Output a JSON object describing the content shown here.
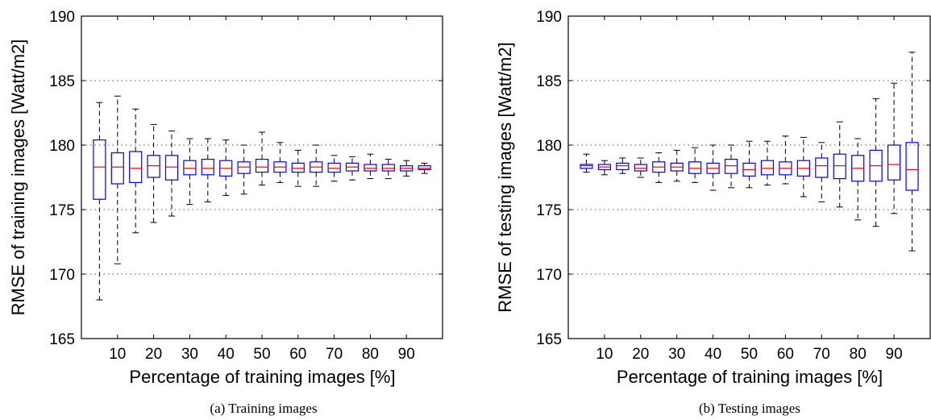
{
  "chart_data": [
    {
      "type": "box",
      "caption": "(a) Training images",
      "xlabel": "Percentage of training images [%]",
      "ylabel": "RMSE of training images [Watt/m2]",
      "ylim": [
        165,
        190
      ],
      "yticks": [
        165,
        170,
        175,
        180,
        185,
        190
      ],
      "xticks": [
        10,
        20,
        30,
        40,
        50,
        60,
        70,
        80,
        90
      ],
      "grid": "horizontal dotted",
      "colors": {
        "box": "#0000ff",
        "median": "#ff0000",
        "whisker": "#000000"
      },
      "boxes": [
        {
          "x": 5,
          "whislo": 168.0,
          "q1": 175.8,
          "med": 178.3,
          "q3": 180.4,
          "whishi": 183.3
        },
        {
          "x": 10,
          "whislo": 170.8,
          "q1": 177.0,
          "med": 178.3,
          "q3": 179.4,
          "whishi": 183.8
        },
        {
          "x": 15,
          "whislo": 173.2,
          "q1": 177.1,
          "med": 178.2,
          "q3": 179.5,
          "whishi": 182.8
        },
        {
          "x": 20,
          "whislo": 174.0,
          "q1": 177.5,
          "med": 178.4,
          "q3": 179.2,
          "whishi": 181.6
        },
        {
          "x": 25,
          "whislo": 174.5,
          "q1": 177.3,
          "med": 178.3,
          "q3": 179.2,
          "whishi": 181.1
        },
        {
          "x": 30,
          "whislo": 175.4,
          "q1": 177.7,
          "med": 178.2,
          "q3": 178.8,
          "whishi": 180.5
        },
        {
          "x": 35,
          "whislo": 175.6,
          "q1": 177.7,
          "med": 178.2,
          "q3": 178.9,
          "whishi": 180.5
        },
        {
          "x": 40,
          "whislo": 176.1,
          "q1": 177.6,
          "med": 178.2,
          "q3": 178.8,
          "whishi": 180.4
        },
        {
          "x": 45,
          "whislo": 176.2,
          "q1": 177.8,
          "med": 178.3,
          "q3": 178.7,
          "whishi": 180.0
        },
        {
          "x": 50,
          "whislo": 176.9,
          "q1": 177.9,
          "med": 178.3,
          "q3": 178.9,
          "whishi": 181.0
        },
        {
          "x": 55,
          "whislo": 177.1,
          "q1": 177.9,
          "med": 178.3,
          "q3": 178.7,
          "whishi": 180.2
        },
        {
          "x": 60,
          "whislo": 176.8,
          "q1": 177.9,
          "med": 178.2,
          "q3": 178.6,
          "whishi": 179.6
        },
        {
          "x": 65,
          "whislo": 176.8,
          "q1": 177.9,
          "med": 178.3,
          "q3": 178.7,
          "whishi": 180.0
        },
        {
          "x": 70,
          "whislo": 177.2,
          "q1": 177.9,
          "med": 178.2,
          "q3": 178.6,
          "whishi": 179.2
        },
        {
          "x": 75,
          "whislo": 177.3,
          "q1": 178.0,
          "med": 178.3,
          "q3": 178.6,
          "whishi": 179.1
        },
        {
          "x": 80,
          "whislo": 177.4,
          "q1": 178.0,
          "med": 178.2,
          "q3": 178.5,
          "whishi": 179.3
        },
        {
          "x": 85,
          "whislo": 177.4,
          "q1": 178.0,
          "med": 178.2,
          "q3": 178.5,
          "whishi": 178.9
        },
        {
          "x": 90,
          "whislo": 177.6,
          "q1": 178.0,
          "med": 178.2,
          "q3": 178.4,
          "whishi": 178.8
        },
        {
          "x": 95,
          "whislo": 177.8,
          "q1": 178.1,
          "med": 178.2,
          "q3": 178.4,
          "whishi": 178.6
        }
      ]
    },
    {
      "type": "box",
      "caption": "(b) Testing images",
      "xlabel": "Percentage of training images [%]",
      "ylabel": "RMSE of testing images [Watt/m2]",
      "ylim": [
        165,
        190
      ],
      "yticks": [
        165,
        170,
        175,
        180,
        185,
        190
      ],
      "xticks": [
        10,
        20,
        30,
        40,
        50,
        60,
        70,
        80,
        90
      ],
      "grid": "horizontal dotted",
      "colors": {
        "box": "#0000ff",
        "median": "#ff0000",
        "whisker": "#000000"
      },
      "boxes": [
        {
          "x": 5,
          "whislo": 177.9,
          "q1": 178.2,
          "med": 178.4,
          "q3": 178.5,
          "whishi": 179.3
        },
        {
          "x": 10,
          "whislo": 177.7,
          "q1": 178.1,
          "med": 178.3,
          "q3": 178.5,
          "whishi": 178.8
        },
        {
          "x": 15,
          "whislo": 177.8,
          "q1": 178.1,
          "med": 178.4,
          "q3": 178.6,
          "whishi": 179.0
        },
        {
          "x": 20,
          "whislo": 177.5,
          "q1": 178.0,
          "med": 178.2,
          "q3": 178.5,
          "whishi": 179.0
        },
        {
          "x": 25,
          "whislo": 177.1,
          "q1": 177.9,
          "med": 178.3,
          "q3": 178.7,
          "whishi": 179.4
        },
        {
          "x": 30,
          "whislo": 177.2,
          "q1": 178.0,
          "med": 178.3,
          "q3": 178.6,
          "whishi": 179.6
        },
        {
          "x": 35,
          "whislo": 177.1,
          "q1": 177.8,
          "med": 178.2,
          "q3": 178.7,
          "whishi": 179.8
        },
        {
          "x": 40,
          "whislo": 176.5,
          "q1": 177.8,
          "med": 178.2,
          "q3": 178.6,
          "whishi": 180.0
        },
        {
          "x": 45,
          "whislo": 176.7,
          "q1": 177.8,
          "med": 178.4,
          "q3": 178.9,
          "whishi": 180.0
        },
        {
          "x": 50,
          "whislo": 176.7,
          "q1": 177.6,
          "med": 178.1,
          "q3": 178.6,
          "whishi": 180.3
        },
        {
          "x": 55,
          "whislo": 176.9,
          "q1": 177.7,
          "med": 178.2,
          "q3": 178.8,
          "whishi": 180.3
        },
        {
          "x": 60,
          "whislo": 177.0,
          "q1": 177.7,
          "med": 178.2,
          "q3": 178.7,
          "whishi": 180.7
        },
        {
          "x": 65,
          "whislo": 176.0,
          "q1": 177.6,
          "med": 178.2,
          "q3": 178.8,
          "whishi": 180.6
        },
        {
          "x": 70,
          "whislo": 175.6,
          "q1": 177.5,
          "med": 178.4,
          "q3": 179.0,
          "whishi": 180.2
        },
        {
          "x": 75,
          "whislo": 175.2,
          "q1": 177.4,
          "med": 178.4,
          "q3": 179.3,
          "whishi": 181.8
        },
        {
          "x": 80,
          "whislo": 174.2,
          "q1": 177.2,
          "med": 178.2,
          "q3": 179.2,
          "whishi": 180.5
        },
        {
          "x": 85,
          "whislo": 173.7,
          "q1": 177.2,
          "med": 178.4,
          "q3": 179.6,
          "whishi": 183.6
        },
        {
          "x": 90,
          "whislo": 174.7,
          "q1": 177.3,
          "med": 178.5,
          "q3": 180.0,
          "whishi": 184.8
        },
        {
          "x": 95,
          "whislo": 171.8,
          "q1": 176.5,
          "med": 178.1,
          "q3": 180.2,
          "whishi": 187.2
        }
      ]
    }
  ]
}
